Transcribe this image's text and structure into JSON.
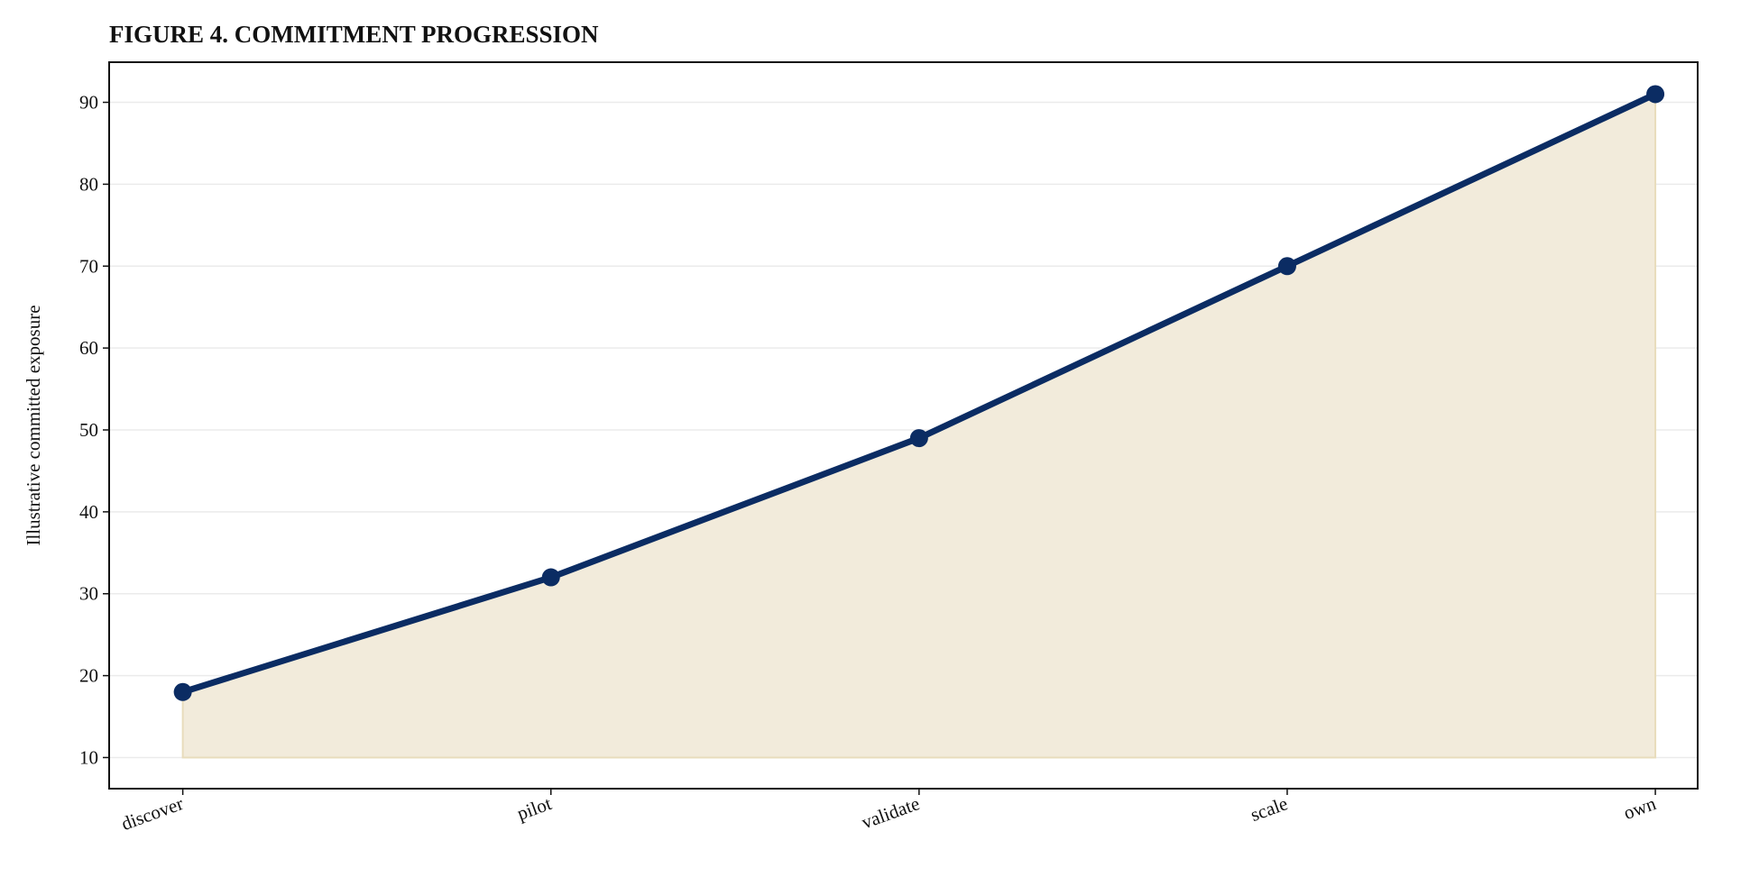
{
  "chart_data": {
    "type": "area-line",
    "title": "FIGURE 4. COMMITMENT PROGRESSION",
    "y_label": "Illustrative committed exposure",
    "categories": [
      "discover",
      "pilot",
      "validate",
      "scale",
      "own"
    ],
    "values": [
      18,
      32,
      49,
      70,
      91
    ],
    "color": "#0b2c63",
    "fill_color": "#f2ebdb",
    "fill_baseline": 10,
    "ylim": [
      6.2,
      94.9
    ],
    "yticks": [
      10,
      20,
      30,
      40,
      50,
      60,
      70,
      80,
      90
    ],
    "grid": true
  }
}
